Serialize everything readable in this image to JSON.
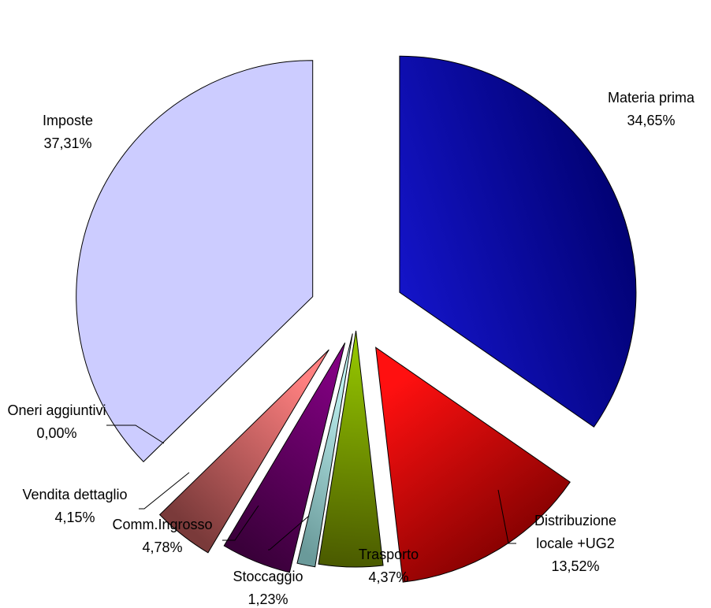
{
  "chart_data": {
    "type": "pie",
    "exploded": true,
    "slices": [
      {
        "label": "Materia prima",
        "value_text": "34,65%",
        "value": 34.65,
        "color": "#1414c8",
        "color_dark": "#00006e"
      },
      {
        "label": "Distribuzione locale +UG2",
        "label_lines": [
          "Distribuzione",
          "locale +UG2"
        ],
        "value_text": "13,52%",
        "value": 13.52,
        "color": "#ff1010",
        "color_dark": "#7a0000"
      },
      {
        "label": "Trasporto",
        "value_text": "4,37%",
        "value": 4.37,
        "color": "#99cc00",
        "color_dark": "#4a5a00"
      },
      {
        "label": "Stoccaggio",
        "value_text": "1,23%",
        "value": 1.23,
        "color": "#ccffff",
        "color_dark": "#6a9a9a"
      },
      {
        "label": "Comm.Ingrosso",
        "value_text": "4,78%",
        "value": 4.78,
        "color": "#800080",
        "color_dark": "#3a003a"
      },
      {
        "label": "Vendita dettaglio",
        "value_text": "4,15%",
        "value": 4.15,
        "color": "#ff8080",
        "color_dark": "#7a3a3a"
      },
      {
        "label": "Oneri aggiuntivi",
        "value_text": "0,00%",
        "value": 0.0,
        "color": "#ff8080",
        "color_dark": "#7a3a3a"
      },
      {
        "label": "Imposte",
        "value_text": "37,31%",
        "value": 37.31,
        "color": "#ccccff",
        "color_dark": "#ccccff"
      }
    ]
  }
}
